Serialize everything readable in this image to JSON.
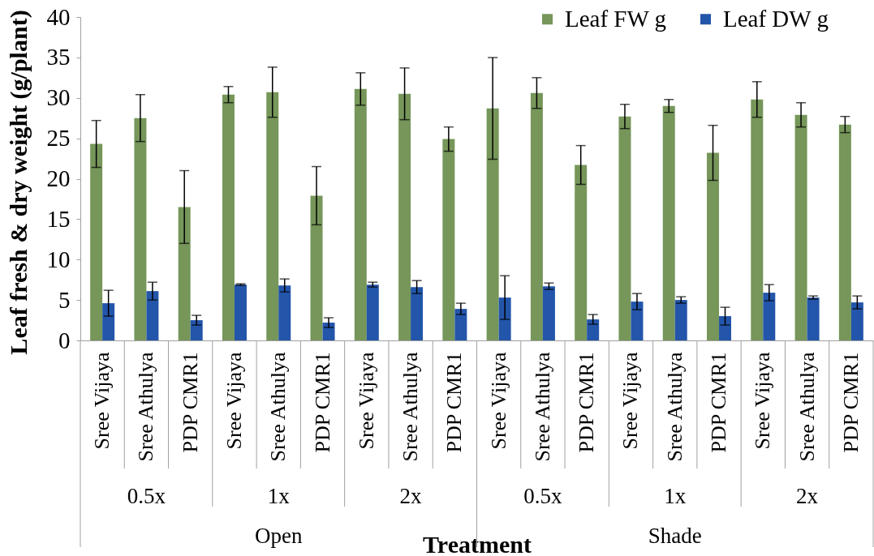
{
  "chart_data": {
    "type": "bar",
    "categories": [
      "Sree Vijaya",
      "Sree Athulya",
      "PDP CMR1",
      "Sree Vijaya",
      "Sree Athulya",
      "PDP CMR1",
      "Sree Vijaya",
      "Sree Athulya",
      "PDP CMR1",
      "Sree Vijaya",
      "Sree Athulya",
      "PDP CMR1",
      "Sree Vijaya",
      "Sree Athulya",
      "PDP CMR1",
      "Sree Vijaya",
      "Sree Athulya",
      "PDP CMR1"
    ],
    "series": [
      {
        "name": "Leaf FW g",
        "color": "#76965a",
        "values": [
          24.3,
          27.5,
          16.5,
          30.4,
          30.7,
          17.9,
          31.1,
          30.5,
          24.9,
          28.7,
          30.6,
          21.7,
          27.7,
          29.0,
          23.2,
          29.8,
          27.9,
          26.7
        ],
        "errors": [
          2.9,
          2.9,
          4.5,
          1.0,
          3.1,
          3.6,
          2.0,
          3.2,
          1.5,
          6.3,
          1.9,
          2.4,
          1.5,
          0.8,
          3.4,
          2.2,
          1.5,
          1.0
        ]
      },
      {
        "name": "Leaf DW g",
        "color": "#2355aa",
        "values": [
          4.6,
          6.1,
          2.5,
          6.9,
          6.8,
          2.2,
          6.9,
          6.6,
          3.9,
          5.3,
          6.7,
          2.6,
          4.8,
          5.0,
          3.0,
          5.9,
          5.3,
          4.7
        ],
        "errors": [
          1.6,
          1.1,
          0.6,
          0.1,
          0.8,
          0.6,
          0.3,
          0.8,
          0.7,
          2.7,
          0.4,
          0.6,
          1.0,
          0.4,
          1.1,
          1.0,
          0.2,
          0.8
        ]
      }
    ],
    "xlabel": "Treatment",
    "ylabel": "Leaf fresh & dry weight (g/plant)",
    "ylim": [
      0,
      40
    ],
    "yticks": [
      0,
      5,
      10,
      15,
      20,
      25,
      30,
      35,
      40
    ],
    "legend": "top right",
    "annotations": [
      "0.5x",
      "1x",
      "2x",
      "0.5x",
      "1x",
      "2x",
      "Open",
      "Shade"
    ]
  }
}
